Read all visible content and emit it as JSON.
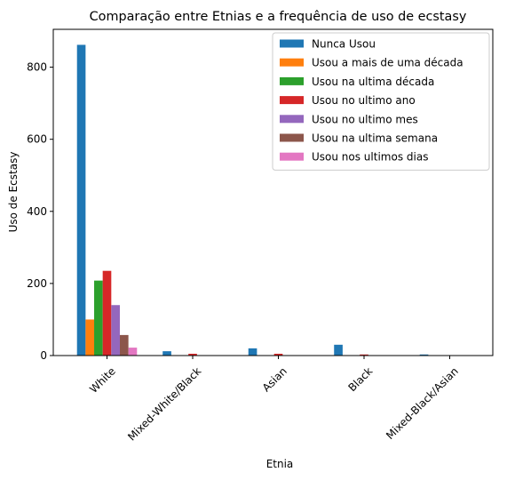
{
  "chart_data": {
    "type": "bar",
    "title": "Comparação entre Etnias e a frequência de uso de ecstasy",
    "xlabel": "Etnia",
    "ylabel": "Uso de Ecstasy",
    "categories": [
      "White",
      "Mixed-White/Black",
      "Asian",
      "Black",
      "Mixed-Black/Asian"
    ],
    "ylim": [
      0,
      905
    ],
    "yticks": [
      0,
      200,
      400,
      600,
      800
    ],
    "grid": false,
    "legend_position": "top-right",
    "series": [
      {
        "name": "Nunca Usou",
        "color": "#1f77b4",
        "values": [
          862,
          12,
          20,
          30,
          3
        ]
      },
      {
        "name": "Usou a mais de uma década",
        "color": "#ff7f0e",
        "values": [
          100,
          0,
          0,
          0,
          0
        ]
      },
      {
        "name": "Usou na ultima década",
        "color": "#2ca02c",
        "values": [
          208,
          0,
          0,
          0,
          0
        ]
      },
      {
        "name": "Usou no ultimo ano",
        "color": "#d62728",
        "values": [
          235,
          5,
          5,
          3,
          0
        ]
      },
      {
        "name": "Usou no ultimo mes",
        "color": "#9467bd",
        "values": [
          140,
          0,
          0,
          0,
          0
        ]
      },
      {
        "name": "Usou na ultima semana",
        "color": "#8c564b",
        "values": [
          57,
          0,
          0,
          0,
          0
        ]
      },
      {
        "name": "Usou nos ultimos dias",
        "color": "#e377c2",
        "values": [
          22,
          0,
          0,
          0,
          0
        ]
      }
    ]
  }
}
